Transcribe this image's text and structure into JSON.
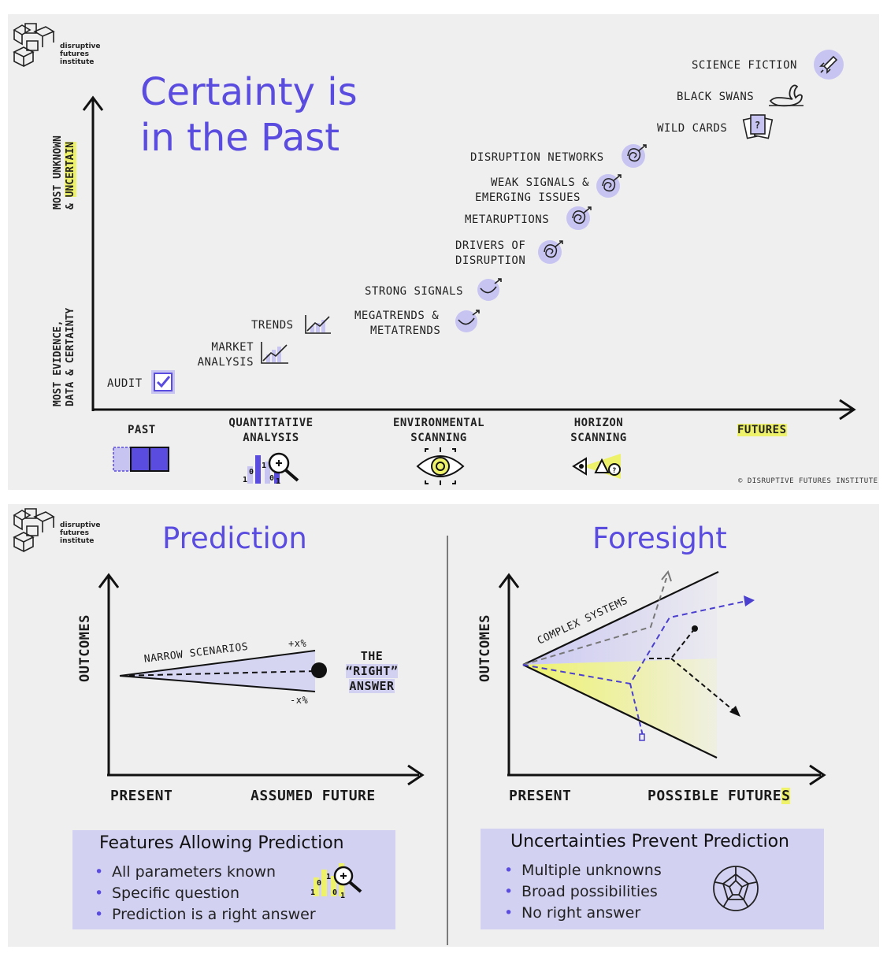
{
  "logo": {
    "line1": "disruptive",
    "line2": "futures",
    "line3": "institute"
  },
  "top": {
    "title_line1": "Certainty is",
    "title_line2": "in the Past",
    "y_axis_top_line1": "MOST UNKNOWN",
    "y_axis_top_line2_prefix": "& ",
    "y_axis_top_line2_highlight": "UNCERTAIN",
    "y_axis_bottom_line1": "MOST EVIDENCE,",
    "y_axis_bottom_line2": "DATA & CERTAINTY",
    "items": {
      "science_fiction": "SCIENCE FICTION",
      "black_swans": "BLACK SWANS",
      "wild_cards": "WILD CARDS",
      "disruption_networks": "DISRUPTION NETWORKS",
      "weak_signals_1": "WEAK SIGNALS &",
      "weak_signals_2": "EMERGING ISSUES",
      "metaruptions": "METARUPTIONS",
      "drivers_1": "DRIVERS OF",
      "drivers_2": "DISRUPTION",
      "strong_signals": "STRONG SIGNALS",
      "megatrends_1": "MEGATRENDS &",
      "megatrends_2": "METATRENDS",
      "trends": "TRENDS",
      "market_1": "MARKET",
      "market_2": "ANALYSIS",
      "audit": "AUDIT"
    },
    "categories": {
      "past": "PAST",
      "quant_1": "QUANTITATIVE",
      "quant_2": "ANALYSIS",
      "env_1": "ENVIRONMENTAL",
      "env_2": "SCANNING",
      "horizon_1": "HORIZON",
      "horizon_2": "SCANNING",
      "futures": "FUTURES"
    },
    "copyright": "© DISRUPTIVE FUTURES INSTITUTE"
  },
  "bottom": {
    "prediction": {
      "title": "Prediction",
      "y_label": "OUTCOMES",
      "x_left": "PRESENT",
      "x_right": "ASSUMED FUTURE",
      "narrow": "NARROW SCENARIOS",
      "plus": "+x%",
      "minus": "-x%",
      "answer_1": "THE",
      "answer_2": "“RIGHT”",
      "answer_3": "ANSWER",
      "box_title": "Features Allowing Prediction",
      "bullets": [
        "All parameters known",
        "Specific question",
        "Prediction is a right answer"
      ]
    },
    "foresight": {
      "title": "Foresight",
      "y_label": "OUTCOMES",
      "x_left": "PRESENT",
      "x_right_main": "POSSIBLE FUTURE",
      "x_right_highlight": "S",
      "complex": "COMPLEX SYSTEMS",
      "box_title": "Uncertainties Prevent Prediction",
      "bullets": [
        "Multiple unknowns",
        "Broad possibilities",
        "No right answer"
      ]
    }
  },
  "colors": {
    "accent": "#5b4ce0",
    "lavender": "#d2d1f2",
    "highlight": "#eef26a"
  }
}
